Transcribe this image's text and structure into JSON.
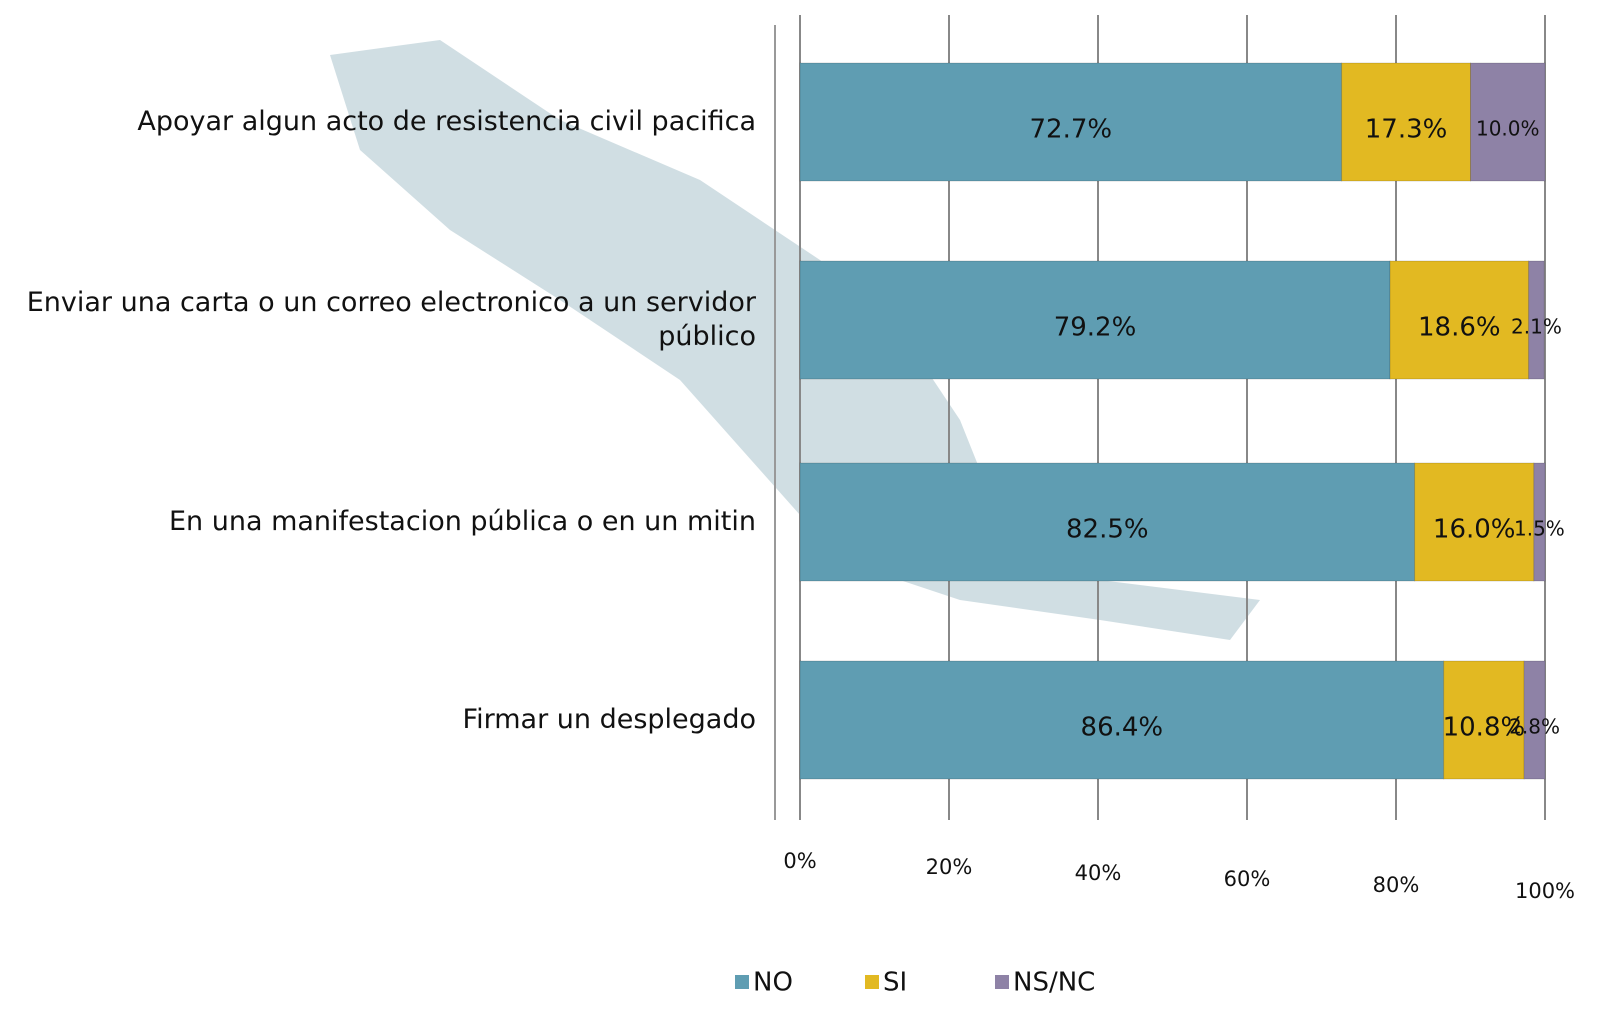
{
  "chart_data": {
    "type": "stacked-bar-horizontal",
    "categories": [
      "Apoyar algun acto de resistencia civil pacifica",
      "Enviar una carta o un correo electronico a un servidor público",
      "En una manifestacion pública o en un mitin",
      "Firmar un desplegado"
    ],
    "series": [
      {
        "name": "NO",
        "color": "#5f9db2",
        "values": [
          72.7,
          79.2,
          82.5,
          86.4
        ],
        "value_labels": [
          "72.7%",
          "79.2%",
          "82.5%",
          "86.4%"
        ]
      },
      {
        "name": "SI",
        "color": "#e2b922",
        "values": [
          17.3,
          18.6,
          16.0,
          10.8
        ],
        "value_labels": [
          "17.3%",
          "18.6%",
          "16.0%",
          "10.8%"
        ]
      },
      {
        "name": "NS/NC",
        "color": "#8e82a6",
        "values": [
          10.0,
          2.1,
          1.5,
          2.8
        ],
        "value_labels": [
          "10.0%",
          "2.1%",
          "1.5%",
          "2.8%"
        ]
      }
    ],
    "xlim": [
      0,
      100
    ],
    "xticks": [
      {
        "value": 0,
        "label": "0%"
      },
      {
        "value": 20,
        "label": "20%"
      },
      {
        "value": 40,
        "label": "40%"
      },
      {
        "value": 60,
        "label": "60%"
      },
      {
        "value": 80,
        "label": "80%"
      },
      {
        "value": 100,
        "label": "100%"
      }
    ],
    "grid": true,
    "legend": "bottom"
  }
}
